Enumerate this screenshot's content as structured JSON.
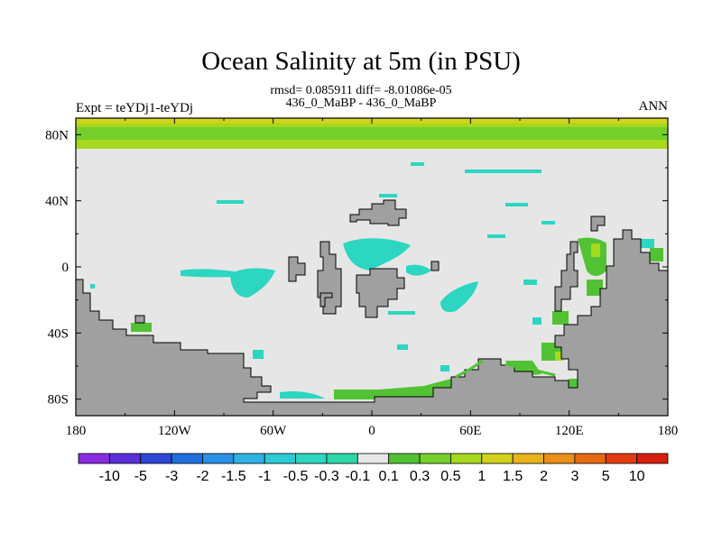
{
  "chart_data": {
    "type": "heatmap",
    "title": "Ocean Salinity at 5m (in PSU)",
    "stats_text": "rmsd= 0.085911 diff= -8.01086e-05",
    "subtitle": "436_0_MaBP - 436_0_MaBP",
    "left_label": "Expt = teYDj1-teYDj",
    "right_label": "ANN",
    "x_ticks": [
      "180",
      "120W",
      "60W",
      "0",
      "60E",
      "120E",
      "180"
    ],
    "y_ticks": [
      "80N",
      "40N",
      "0",
      "40S",
      "80S"
    ],
    "xlim": [
      -180,
      180
    ],
    "ylim": [
      -90,
      90
    ],
    "colorbar": {
      "labels": [
        "-10",
        "-5",
        "-3",
        "-2",
        "-1.5",
        "-1",
        "-0.5",
        "-0.3",
        "-0.1",
        "0.1",
        "0.3",
        "0.5",
        "1",
        "1.5",
        "2",
        "3",
        "5",
        "10"
      ],
      "colors": [
        "#8a2be2",
        "#5b2fd9",
        "#2e46d8",
        "#1f6fe0",
        "#2a8fe6",
        "#2fb2e6",
        "#2ccbd6",
        "#2cd6c0",
        "#2cd8a8",
        "#e6e6e6",
        "#52c234",
        "#74cf2a",
        "#a6d81e",
        "#d0d21c",
        "#e8b41c",
        "#e89018",
        "#e66a14",
        "#e43c10",
        "#d81e0c"
      ]
    }
  }
}
